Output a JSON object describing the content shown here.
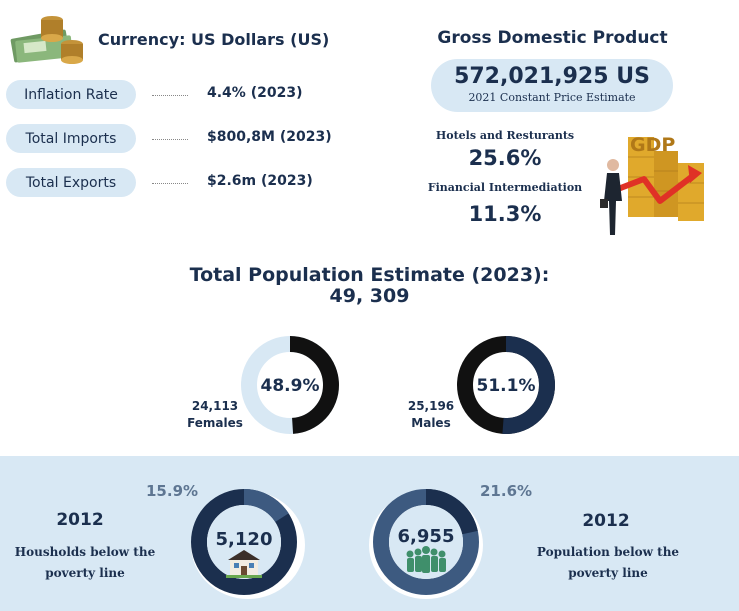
{
  "currency": {
    "label": "Currency: US Dollars (US)",
    "icon": "money-stack-icon"
  },
  "indicators": [
    {
      "label": "Inflation Rate",
      "value": "4.4% (2023)"
    },
    {
      "label": "Total Imports",
      "value": "$800,8M (2023)"
    },
    {
      "label": "Total Exports",
      "value": "$2.6m (2023)"
    }
  ],
  "gdp": {
    "title": "Gross Domestic Product",
    "value": "572,021,925 US",
    "note": "2021 Constant Price Estimate",
    "sectors": [
      {
        "name": "Hotels and Resturants",
        "value": "25.6%"
      },
      {
        "name": "Financial Intermediation",
        "value": "11.3%"
      }
    ],
    "art_text": "GDP",
    "icon": "gdp-growth-icon"
  },
  "population": {
    "title": "Total Population Estimate (2023):",
    "total": "49, 309",
    "groups": [
      {
        "count": "24,113",
        "label": "Females",
        "percent_label": "48.9%",
        "fraction": 0.489
      },
      {
        "count": "25,196",
        "label": "Males",
        "percent_label": "51.1%",
        "fraction": 0.511
      }
    ]
  },
  "poverty": [
    {
      "year": "2012",
      "label_line1": "Housholds below the",
      "label_line2": "poverty line",
      "percent_label": "15.9%",
      "fraction": 0.159,
      "center_value": "5,120",
      "icon": "house-icon"
    },
    {
      "year": "2012",
      "label_line1": "Population below the",
      "label_line2": "poverty line",
      "percent_label": "21.6%",
      "fraction": 0.216,
      "center_value": "6,955",
      "icon": "people-icon"
    }
  ],
  "colors": {
    "navy": "#1b2f4e",
    "light_blue": "#d8e8f4",
    "mid_blue": "#3d5a80",
    "black": "#111111"
  }
}
